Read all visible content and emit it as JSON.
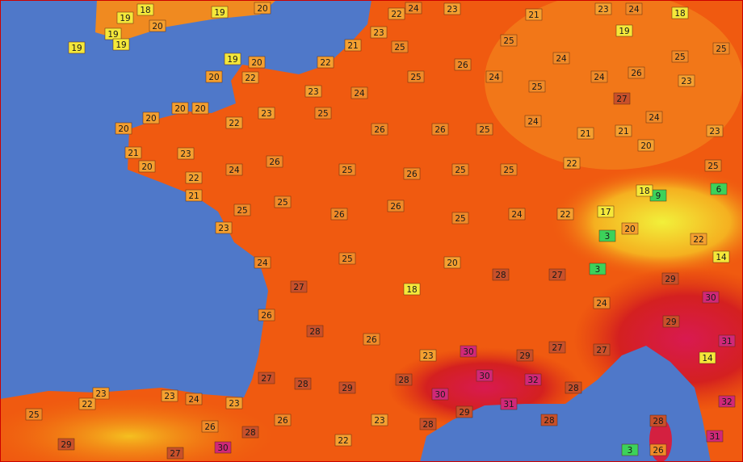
{
  "map": {
    "stations": [
      18,
      19,
      20,
      19,
      19,
      19,
      19,
      20,
      22,
      24,
      23,
      21,
      23,
      24,
      18,
      19,
      23,
      21,
      25,
      26,
      25,
      24,
      26,
      25,
      25,
      19,
      20,
      20,
      22,
      22,
      23,
      24,
      25,
      24,
      25,
      24,
      27,
      23,
      20,
      20,
      20,
      20,
      21,
      22,
      23,
      25,
      26,
      26,
      25,
      24,
      21,
      21,
      24,
      23,
      20,
      23,
      22,
      24,
      26,
      25,
      26,
      25,
      25,
      22,
      20,
      25,
      21,
      23,
      25,
      25,
      26,
      26,
      25,
      24,
      22,
      17,
      9,
      6,
      18,
      3,
      3,
      20,
      22,
      14,
      24,
      27,
      25,
      18,
      20,
      28,
      27,
      24,
      29,
      30,
      26,
      28,
      26,
      23,
      30,
      29,
      27,
      27,
      29,
      14,
      31,
      27,
      28,
      29,
      28,
      30,
      30,
      32,
      28,
      32,
      23,
      23,
      24,
      23,
      25,
      22,
      26,
      29,
      27,
      30,
      28,
      26,
      22,
      23,
      28,
      29,
      31,
      28,
      28,
      31,
      3,
      26
    ]
  }
}
